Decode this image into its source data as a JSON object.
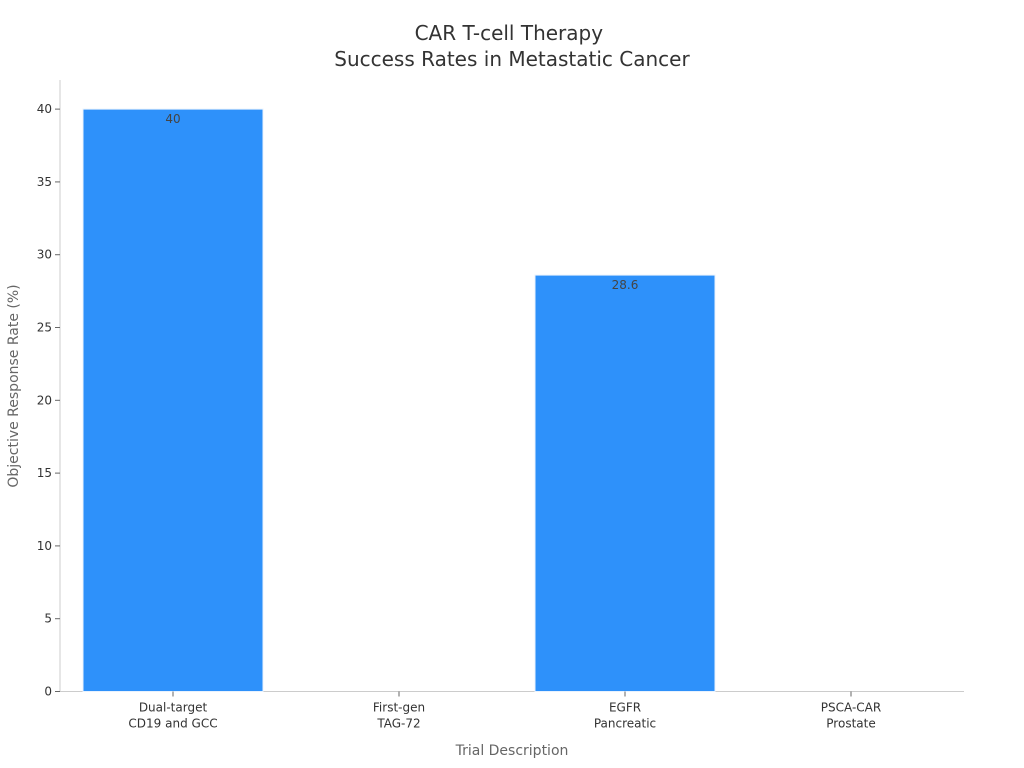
{
  "chart_data": {
    "type": "bar",
    "title": [
      "CAR T-cell Therapy",
      "Success Rates in Metastatic Cancer"
    ],
    "xlabel": "Trial Description",
    "ylabel": "Objective Response Rate (%)",
    "categories": [
      [
        "Dual-target",
        "CD19 and GCC"
      ],
      [
        "First-gen",
        "TAG-72"
      ],
      [
        "EGFR",
        "Pancreatic"
      ],
      [
        "PSCA-CAR",
        "Prostate"
      ]
    ],
    "values": [
      40,
      null,
      28.6,
      null
    ],
    "data_labels": [
      "40",
      "",
      "28.6",
      ""
    ],
    "ylim": [
      0,
      42
    ],
    "yticks": [
      0,
      5,
      10,
      15,
      20,
      25,
      30,
      35,
      40
    ],
    "grid": false,
    "legend": "none",
    "colors": {
      "bar": "#2e91fa",
      "bar_edge": "#e8f2fe"
    }
  }
}
